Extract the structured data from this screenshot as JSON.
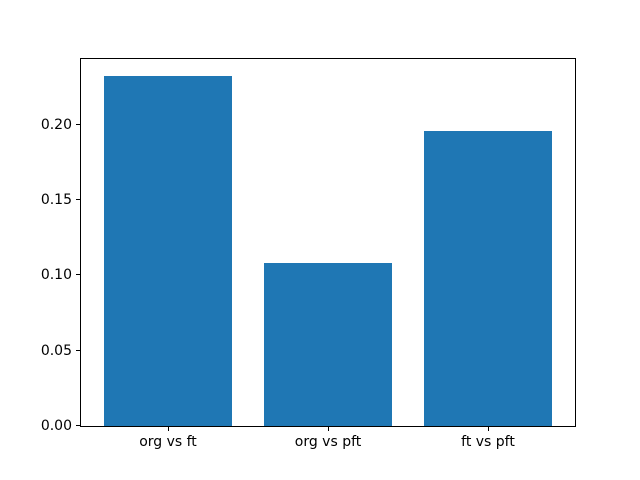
{
  "chart_data": {
    "type": "bar",
    "title": "",
    "xlabel": "",
    "ylabel": "",
    "categories": [
      "org vs ft",
      "org vs pft",
      "ft vs pft"
    ],
    "values": [
      0.232,
      0.108,
      0.196
    ],
    "ylim": [
      0,
      0.2436
    ],
    "yticks": [
      0.0,
      0.05,
      0.1,
      0.15,
      0.2
    ],
    "ytick_labels": [
      "0.00",
      "0.05",
      "0.10",
      "0.15",
      "0.20"
    ],
    "bar_color": "#1f77b4",
    "axis_color": "#000000",
    "background_color": "#ffffff",
    "grid": false,
    "legend_position": "none"
  }
}
